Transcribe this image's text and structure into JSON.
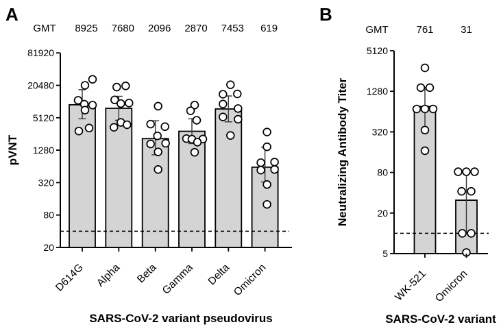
{
  "figure": {
    "panels": [
      {
        "letter": "A"
      },
      {
        "letter": "B"
      }
    ]
  },
  "colors": {
    "background": "#ffffff",
    "bar_fill": "#d4d4d4",
    "bar_stroke": "#000000",
    "point_fill": "#ffffff",
    "point_stroke": "#000000",
    "error_bar": "#3d3d3d",
    "dashed_line": "#000000",
    "text": "#000000"
  },
  "chart_data": [
    {
      "type": "bar",
      "panel": "A",
      "ylabel": "pVNT",
      "xlabel": "SARS-CoV-2 variant pseudovirus",
      "yscale": "log4",
      "yticks": [
        20,
        80,
        320,
        1280,
        5120,
        20480,
        81920
      ],
      "ylim": [
        20,
        81920
      ],
      "grid": false,
      "legend": false,
      "gmt_label": "GMT",
      "categories": [
        "D614G",
        "Alpha",
        "Beta",
        "Gamma",
        "Delta",
        "Omicron"
      ],
      "gmt_values": [
        8925,
        7680,
        2096,
        2870,
        7453,
        619
      ],
      "bar_heights": [
        8925,
        7680,
        2096,
        2870,
        7453,
        619
      ],
      "error_bars": [
        [
          4900,
          17000
        ],
        [
          4600,
          12800
        ],
        [
          1050,
          4500
        ],
        [
          1700,
          4900
        ],
        [
          4300,
          13000
        ],
        [
          330,
          1450
        ]
      ],
      "dashed_line_y": 40,
      "points": [
        [
          [
            26500,
            15
          ],
          [
            20500,
            4
          ],
          [
            10800,
            -6
          ],
          [
            9150,
            3
          ],
          [
            8800,
            15
          ],
          [
            7100,
            4
          ],
          [
            3300,
            10
          ],
          [
            2900,
            -5
          ]
        ],
        [
          [
            20000,
            10
          ],
          [
            19000,
            -3
          ],
          [
            11000,
            -6
          ],
          [
            9600,
            15
          ],
          [
            9400,
            3
          ],
          [
            4200,
            3
          ],
          [
            3800,
            12
          ],
          [
            3400,
            -7
          ]
        ],
        [
          [
            8400,
            4
          ],
          [
            3900,
            -7
          ],
          [
            3500,
            14
          ],
          [
            2360,
            3
          ],
          [
            1720,
            15
          ],
          [
            1670,
            -7
          ],
          [
            1190,
            4
          ],
          [
            560,
            4
          ]
        ],
        [
          [
            8800,
            4
          ],
          [
            6900,
            -2
          ],
          [
            4600,
            7
          ],
          [
            2100,
            -8
          ],
          [
            2060,
            16
          ],
          [
            2050,
            0
          ],
          [
            1800,
            8
          ],
          [
            1170,
            4
          ]
        ],
        [
          [
            21000,
            3
          ],
          [
            14200,
            13
          ],
          [
            14000,
            -8
          ],
          [
            9200,
            -8
          ],
          [
            7600,
            14
          ],
          [
            5300,
            -8
          ],
          [
            4800,
            14
          ],
          [
            2400,
            3
          ]
        ],
        [
          [
            2780,
            3
          ],
          [
            1480,
            3
          ],
          [
            770,
            14
          ],
          [
            750,
            -6
          ],
          [
            560,
            14
          ],
          [
            545,
            -6
          ],
          [
            295,
            3
          ],
          [
            126,
            3
          ]
        ]
      ]
    },
    {
      "type": "bar",
      "panel": "B",
      "ylabel": "Neutralizing Antibody Titer",
      "xlabel": "SARS-CoV-2 variant",
      "yscale": "log4",
      "yticks": [
        5,
        20,
        80,
        320,
        1280,
        5120
      ],
      "ylim": [
        5,
        5120
      ],
      "grid": false,
      "legend": false,
      "gmt_label": "GMT",
      "categories": [
        "WK-521",
        "Omicron"
      ],
      "gmt_values": [
        761,
        31
      ],
      "bar_heights": [
        761,
        31
      ],
      "error_bars": [
        [
          340,
          1450
        ],
        [
          10,
          80
        ]
      ],
      "dashed_line_y": 10,
      "points": [
        [
          [
            2850,
            0
          ],
          [
            1450,
            -6
          ],
          [
            1450,
            7
          ],
          [
            700,
            -12
          ],
          [
            700,
            0
          ],
          [
            700,
            12
          ],
          [
            340,
            0
          ],
          [
            168,
            0
          ]
        ],
        [
          [
            82,
            -12
          ],
          [
            82,
            0
          ],
          [
            82,
            12
          ],
          [
            42,
            -7
          ],
          [
            42,
            7
          ],
          [
            10,
            -6
          ],
          [
            10,
            7
          ],
          [
            5.2,
            0
          ]
        ]
      ]
    }
  ]
}
